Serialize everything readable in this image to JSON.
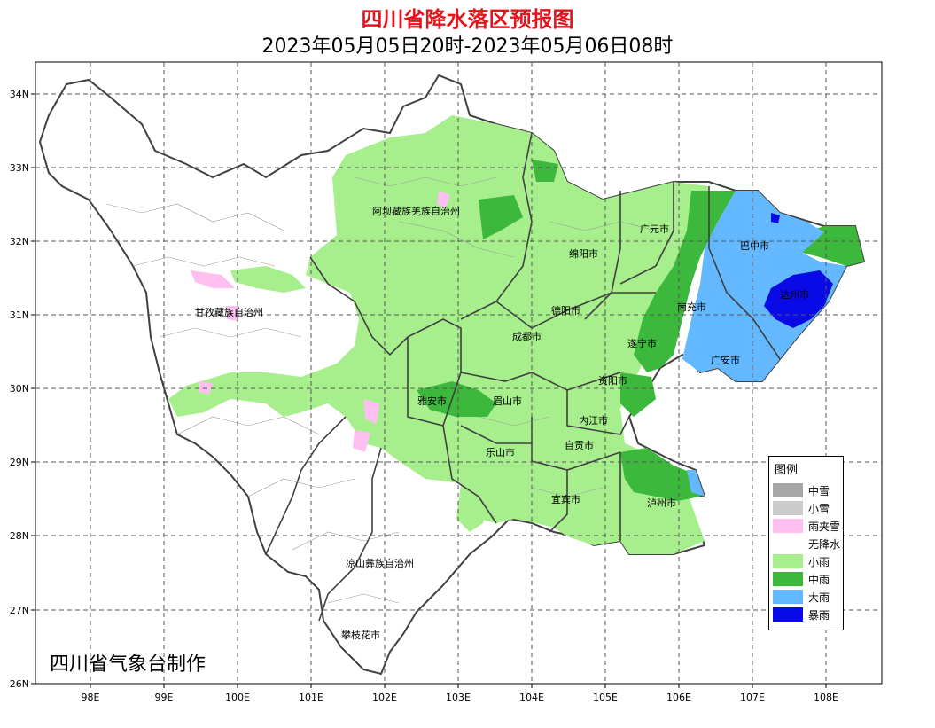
{
  "title": "四川省降水落区预报图",
  "subtitle": "2023年05月05日20时-2023年05月06日08时",
  "credit": "四川省气象台制作",
  "axes": {
    "lat_labels": [
      "34N",
      "33N",
      "32N",
      "31N",
      "30N",
      "29N",
      "28N",
      "27N",
      "26N"
    ],
    "lon_labels": [
      "98E",
      "99E",
      "100E",
      "101E",
      "102E",
      "103E",
      "104E",
      "105E",
      "106E",
      "107E",
      "108E"
    ]
  },
  "cities": [
    {
      "name": "阿坝藏族羌族自治州"
    },
    {
      "name": "甘孜藏族自治州"
    },
    {
      "name": "广元市"
    },
    {
      "name": "巴中市"
    },
    {
      "name": "绵阳市"
    },
    {
      "name": "达州市"
    },
    {
      "name": "德阳市"
    },
    {
      "name": "南充市"
    },
    {
      "name": "成都市"
    },
    {
      "name": "遂宁市"
    },
    {
      "name": "广安市"
    },
    {
      "name": "资阳市"
    },
    {
      "name": "雅安市"
    },
    {
      "name": "眉山市"
    },
    {
      "name": "内江市"
    },
    {
      "name": "自贡市"
    },
    {
      "name": "乐山市"
    },
    {
      "name": "宜宾市"
    },
    {
      "name": "泸州市"
    },
    {
      "name": "凉山彝族自治州"
    },
    {
      "name": "攀枝花市"
    }
  ],
  "legend": {
    "title": "图例",
    "items": [
      {
        "label": "中雪",
        "color": "#a6a6a6"
      },
      {
        "label": "小雪",
        "color": "#cccccc"
      },
      {
        "label": "雨夹雪",
        "color": "#ffbff0"
      },
      {
        "label": "无降水",
        "color": "#ffffff"
      },
      {
        "label": "小雨",
        "color": "#a6ef8c"
      },
      {
        "label": "中雨",
        "color": "#3cb83c"
      },
      {
        "label": "大雨",
        "color": "#63b8ff"
      },
      {
        "label": "暴雨",
        "color": "#0a0ae6"
      }
    ]
  }
}
